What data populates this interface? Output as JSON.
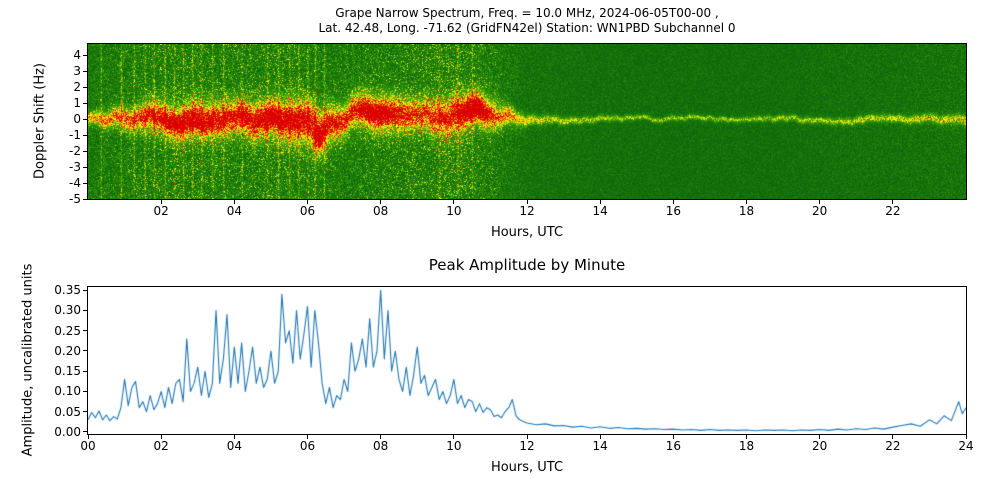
{
  "figure": {
    "background": "#ffffff"
  },
  "chart_data": [
    {
      "id": "doppler-spectrogram",
      "type": "heatmap",
      "title_line1": "Grape Narrow Spectrum, Freq. = 10.0 MHz, 2024-06-05T00-00 ,",
      "title_line2": "Lat. 42.48, Long. -71.62 (GridFN42el) Station: WN1PBD Subchannel 0",
      "xlabel": "Hours, UTC",
      "ylabel": "Doppler Shift (Hz)",
      "xlim": [
        0,
        24
      ],
      "ylim": [
        -5,
        4.7
      ],
      "xtick_values": [
        2,
        4,
        6,
        8,
        10,
        12,
        14,
        16,
        18,
        20,
        22
      ],
      "xtick_labels": [
        "02",
        "04",
        "06",
        "08",
        "10",
        "12",
        "14",
        "16",
        "18",
        "20",
        "22"
      ],
      "ytick_values": [
        4,
        3,
        2,
        1,
        0,
        -1,
        -2,
        -3,
        -4,
        -5
      ],
      "ytick_labels": [
        "4",
        "3",
        "2",
        "1",
        "0",
        "-1",
        "-2",
        "-3",
        "-4",
        "-5"
      ],
      "colormap": {
        "low": "#0c690c",
        "mid": "#46a708",
        "high": "#ffff00",
        "peak": "#dc0000"
      },
      "band_center_hz": 0,
      "band_halfwidth_hz": [
        0.5,
        0.9,
        1.3,
        1.5,
        1.4,
        1.6,
        1.8,
        1.3,
        1.5,
        1.3,
        1.6,
        1.1,
        0.4,
        0.3,
        0.25,
        0.2,
        0.2,
        0.2,
        0.2,
        0.25,
        0.25,
        0.3,
        0.3,
        0.35,
        0.4
      ],
      "band_intensity": [
        0.55,
        0.75,
        0.92,
        0.95,
        0.9,
        0.95,
        1.0,
        0.9,
        1.0,
        0.85,
        0.95,
        0.75,
        0.55,
        0.5,
        0.45,
        0.4,
        0.4,
        0.4,
        0.42,
        0.42,
        0.45,
        0.5,
        0.52,
        0.55,
        0.6
      ],
      "noise_level": [
        0.45,
        0.6,
        0.7,
        0.72,
        0.65,
        0.72,
        0.65,
        0.55,
        0.65,
        0.72,
        0.8,
        0.6,
        0.3,
        0.25,
        0.22,
        0.2,
        0.2,
        0.2,
        0.2,
        0.2,
        0.22,
        0.25,
        0.25,
        0.3,
        0.32
      ],
      "center_drift_hz": [
        [
          0,
          0
        ],
        [
          0.5,
          0.05
        ],
        [
          1,
          -0.1
        ],
        [
          1.5,
          0.15
        ],
        [
          2,
          0.25
        ],
        [
          2.5,
          -0.15
        ],
        [
          3,
          0.2
        ],
        [
          3.5,
          -0.1
        ],
        [
          4,
          0.15
        ],
        [
          4.5,
          -0.25
        ],
        [
          5,
          0.2
        ],
        [
          5.5,
          -0.15
        ],
        [
          6,
          0.1
        ],
        [
          6.3,
          -0.9
        ],
        [
          6.6,
          -0.3
        ],
        [
          7,
          0.25
        ],
        [
          7.5,
          0.5
        ],
        [
          8,
          0.25
        ],
        [
          8.5,
          0.15
        ],
        [
          9,
          0.35
        ],
        [
          9.5,
          0.15
        ],
        [
          10,
          0.45
        ],
        [
          10.5,
          0.8
        ],
        [
          10.9,
          0.4
        ],
        [
          11.3,
          0.15
        ],
        [
          12,
          0.05
        ],
        [
          13,
          0
        ],
        [
          14,
          -0.05
        ],
        [
          15,
          0.05
        ],
        [
          16,
          0
        ],
        [
          17,
          0.05
        ],
        [
          18,
          0
        ],
        [
          19,
          0.05
        ],
        [
          20,
          -0.05
        ],
        [
          21,
          0
        ],
        [
          22,
          0.05
        ],
        [
          23,
          0
        ],
        [
          24,
          -0.1
        ]
      ],
      "interference_streak_hours": [
        0.35,
        0.9,
        1.25,
        1.55,
        1.8,
        2.1,
        2.35,
        2.6,
        2.85,
        3.1,
        3.4,
        3.7,
        4.2,
        4.9,
        5.2,
        5.5,
        5.75,
        6.0,
        6.2,
        6.45,
        9.6,
        10.1,
        10.5
      ],
      "bright_patches": [
        {
          "hour": 10.6,
          "hz": 0.8,
          "w": 0.45,
          "h": 1.0,
          "a": 0.5
        },
        {
          "hour": 7.9,
          "hz": 0.5,
          "w": 0.5,
          "h": 0.7,
          "a": 0.3
        },
        {
          "hour": 2.6,
          "hz": -0.3,
          "w": 0.8,
          "h": 0.7,
          "a": 0.25
        },
        {
          "hour": 5.0,
          "hz": 0.3,
          "w": 1.2,
          "h": 0.8,
          "a": 0.2
        },
        {
          "hour": 6.3,
          "hz": -1.5,
          "w": 0.15,
          "h": 0.8,
          "a": 0.45
        }
      ]
    },
    {
      "id": "peak-amplitude",
      "type": "line",
      "title": "Peak Amplitude by Minute",
      "xlabel": "Hours, UTC",
      "ylabel": "Amplitude, uncalibrated units",
      "xlim": [
        0,
        24
      ],
      "ylim": [
        -0.005,
        0.358
      ],
      "xtick_values": [
        0,
        2,
        4,
        6,
        8,
        10,
        12,
        14,
        16,
        18,
        20,
        22,
        24
      ],
      "xtick_labels": [
        "00",
        "02",
        "04",
        "06",
        "08",
        "10",
        "12",
        "14",
        "16",
        "18",
        "20",
        "22",
        "24"
      ],
      "ytick_values": [
        0,
        0.05,
        0.1,
        0.15,
        0.2,
        0.25,
        0.3,
        0.35
      ],
      "ytick_labels": [
        "0.00",
        "0.05",
        "0.10",
        "0.15",
        "0.20",
        "0.25",
        "0.30",
        "0.35"
      ],
      "line_color": "#1f77b4",
      "points": [
        [
          0.0,
          0.03
        ],
        [
          0.1,
          0.048
        ],
        [
          0.2,
          0.035
        ],
        [
          0.3,
          0.052
        ],
        [
          0.4,
          0.03
        ],
        [
          0.5,
          0.042
        ],
        [
          0.6,
          0.028
        ],
        [
          0.7,
          0.038
        ],
        [
          0.8,
          0.032
        ],
        [
          0.9,
          0.06
        ],
        [
          1.0,
          0.13
        ],
        [
          1.1,
          0.065
        ],
        [
          1.2,
          0.11
        ],
        [
          1.3,
          0.125
        ],
        [
          1.4,
          0.06
        ],
        [
          1.5,
          0.075
        ],
        [
          1.6,
          0.05
        ],
        [
          1.7,
          0.09
        ],
        [
          1.8,
          0.055
        ],
        [
          1.9,
          0.07
        ],
        [
          2.0,
          0.1
        ],
        [
          2.1,
          0.06
        ],
        [
          2.2,
          0.11
        ],
        [
          2.3,
          0.07
        ],
        [
          2.4,
          0.12
        ],
        [
          2.5,
          0.13
        ],
        [
          2.6,
          0.075
        ],
        [
          2.7,
          0.23
        ],
        [
          2.8,
          0.1
        ],
        [
          2.9,
          0.12
        ],
        [
          3.0,
          0.16
        ],
        [
          3.1,
          0.09
        ],
        [
          3.2,
          0.15
        ],
        [
          3.3,
          0.085
        ],
        [
          3.4,
          0.12
        ],
        [
          3.5,
          0.3
        ],
        [
          3.6,
          0.12
        ],
        [
          3.7,
          0.18
        ],
        [
          3.8,
          0.29
        ],
        [
          3.9,
          0.11
        ],
        [
          4.0,
          0.21
        ],
        [
          4.1,
          0.12
        ],
        [
          4.2,
          0.22
        ],
        [
          4.3,
          0.1
        ],
        [
          4.4,
          0.15
        ],
        [
          4.5,
          0.21
        ],
        [
          4.6,
          0.12
        ],
        [
          4.7,
          0.16
        ],
        [
          4.8,
          0.11
        ],
        [
          4.9,
          0.13
        ],
        [
          5.0,
          0.2
        ],
        [
          5.1,
          0.12
        ],
        [
          5.2,
          0.15
        ],
        [
          5.3,
          0.34
        ],
        [
          5.4,
          0.22
        ],
        [
          5.5,
          0.25
        ],
        [
          5.6,
          0.17
        ],
        [
          5.7,
          0.3
        ],
        [
          5.8,
          0.18
        ],
        [
          5.9,
          0.24
        ],
        [
          6.0,
          0.31
        ],
        [
          6.1,
          0.16
        ],
        [
          6.2,
          0.3
        ],
        [
          6.3,
          0.22
        ],
        [
          6.4,
          0.12
        ],
        [
          6.5,
          0.07
        ],
        [
          6.6,
          0.11
        ],
        [
          6.7,
          0.06
        ],
        [
          6.8,
          0.09
        ],
        [
          6.9,
          0.08
        ],
        [
          7.0,
          0.13
        ],
        [
          7.1,
          0.1
        ],
        [
          7.2,
          0.22
        ],
        [
          7.3,
          0.15
        ],
        [
          7.4,
          0.18
        ],
        [
          7.5,
          0.23
        ],
        [
          7.6,
          0.16
        ],
        [
          7.7,
          0.28
        ],
        [
          7.8,
          0.16
        ],
        [
          7.9,
          0.2
        ],
        [
          8.0,
          0.35
        ],
        [
          8.1,
          0.18
        ],
        [
          8.2,
          0.3
        ],
        [
          8.3,
          0.15
        ],
        [
          8.4,
          0.2
        ],
        [
          8.5,
          0.13
        ],
        [
          8.6,
          0.1
        ],
        [
          8.7,
          0.16
        ],
        [
          8.8,
          0.09
        ],
        [
          8.9,
          0.14
        ],
        [
          9.0,
          0.21
        ],
        [
          9.1,
          0.12
        ],
        [
          9.2,
          0.14
        ],
        [
          9.3,
          0.09
        ],
        [
          9.4,
          0.11
        ],
        [
          9.5,
          0.13
        ],
        [
          9.6,
          0.08
        ],
        [
          9.7,
          0.1
        ],
        [
          9.8,
          0.07
        ],
        [
          9.9,
          0.09
        ],
        [
          10.0,
          0.13
        ],
        [
          10.1,
          0.07
        ],
        [
          10.2,
          0.09
        ],
        [
          10.3,
          0.06
        ],
        [
          10.4,
          0.08
        ],
        [
          10.5,
          0.075
        ],
        [
          10.6,
          0.05
        ],
        [
          10.7,
          0.07
        ],
        [
          10.8,
          0.048
        ],
        [
          10.9,
          0.06
        ],
        [
          11.0,
          0.055
        ],
        [
          11.1,
          0.038
        ],
        [
          11.2,
          0.042
        ],
        [
          11.3,
          0.035
        ],
        [
          11.4,
          0.05
        ],
        [
          11.5,
          0.06
        ],
        [
          11.6,
          0.08
        ],
        [
          11.7,
          0.04
        ],
        [
          11.8,
          0.03
        ],
        [
          11.9,
          0.026
        ],
        [
          12.0,
          0.022
        ],
        [
          12.25,
          0.018
        ],
        [
          12.5,
          0.02
        ],
        [
          12.75,
          0.015
        ],
        [
          13.0,
          0.016
        ],
        [
          13.25,
          0.012
        ],
        [
          13.5,
          0.014
        ],
        [
          13.75,
          0.01
        ],
        [
          14.0,
          0.013
        ],
        [
          14.25,
          0.009
        ],
        [
          14.5,
          0.011
        ],
        [
          14.75,
          0.008
        ],
        [
          15.0,
          0.009
        ],
        [
          15.25,
          0.007
        ],
        [
          15.5,
          0.008
        ],
        [
          15.75,
          0.006
        ],
        [
          16.0,
          0.007
        ],
        [
          16.25,
          0.005
        ],
        [
          16.5,
          0.006
        ],
        [
          16.75,
          0.004
        ],
        [
          17.0,
          0.006
        ],
        [
          17.25,
          0.004
        ],
        [
          17.5,
          0.005
        ],
        [
          17.75,
          0.004
        ],
        [
          18.0,
          0.005
        ],
        [
          18.25,
          0.003
        ],
        [
          18.5,
          0.005
        ],
        [
          18.75,
          0.004
        ],
        [
          19.0,
          0.005
        ],
        [
          19.25,
          0.003
        ],
        [
          19.5,
          0.005
        ],
        [
          19.75,
          0.004
        ],
        [
          20.0,
          0.006
        ],
        [
          20.25,
          0.004
        ],
        [
          20.5,
          0.007
        ],
        [
          20.75,
          0.005
        ],
        [
          21.0,
          0.008
        ],
        [
          21.25,
          0.006
        ],
        [
          21.5,
          0.01
        ],
        [
          21.75,
          0.007
        ],
        [
          22.0,
          0.012
        ],
        [
          22.25,
          0.016
        ],
        [
          22.5,
          0.02
        ],
        [
          22.75,
          0.014
        ],
        [
          23.0,
          0.03
        ],
        [
          23.2,
          0.02
        ],
        [
          23.4,
          0.04
        ],
        [
          23.6,
          0.028
        ],
        [
          23.8,
          0.075
        ],
        [
          23.9,
          0.045
        ],
        [
          24.0,
          0.06
        ]
      ]
    }
  ]
}
